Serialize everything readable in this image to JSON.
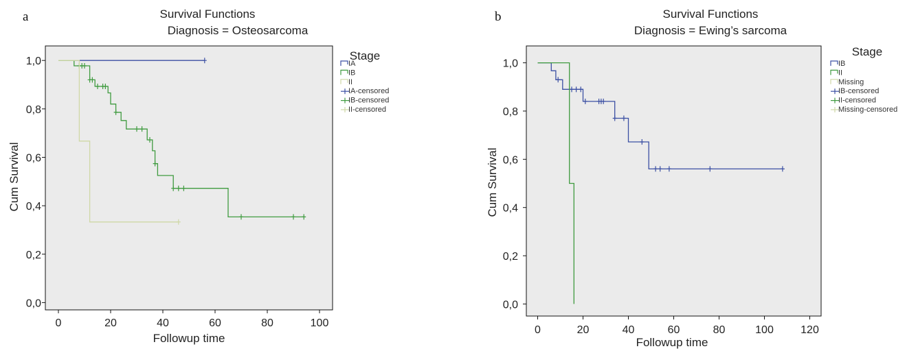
{
  "chart_data": [
    {
      "type": "line",
      "panel_label": "a",
      "title": "Survival Functions",
      "subtitle": "Diagnosis = Osteosarcoma",
      "xlabel": "Followup time",
      "ylabel": "Cum Survival",
      "xlim": [
        -5,
        105
      ],
      "ylim": [
        -0.03,
        1.06
      ],
      "xticks": [
        0,
        20,
        40,
        60,
        80,
        100
      ],
      "yticks": [
        "0,0",
        "0,2",
        "0,4",
        "0,6",
        "0,8",
        "1,0"
      ],
      "ytick_values": [
        0,
        0.2,
        0.4,
        0.6,
        0.8,
        1.0
      ],
      "grid": false,
      "legend_title": "Stage",
      "legend_position": "right",
      "legend": [
        "IA",
        "IB",
        "II",
        "IA-censored",
        "IB-censored",
        "II-censored"
      ],
      "colors": {
        "IA": "#3b4fa3",
        "IB": "#3f9b3f",
        "II": "#cfd8a6",
        "plot_bg": "#ebebeb"
      },
      "series": [
        {
          "name": "IA",
          "color": "#3b4fa3",
          "steps": [
            [
              0,
              1.0
            ],
            [
              56,
              1.0
            ]
          ],
          "censored": [
            [
              56,
              1.0
            ]
          ]
        },
        {
          "name": "IB",
          "color": "#3f9b3f",
          "steps": [
            [
              0,
              1.0
            ],
            [
              6,
              0.978
            ],
            [
              12,
              0.92
            ],
            [
              14,
              0.893
            ],
            [
              19,
              0.866
            ],
            [
              20,
              0.82
            ],
            [
              22,
              0.786
            ],
            [
              24,
              0.752
            ],
            [
              26,
              0.717
            ],
            [
              34,
              0.672
            ],
            [
              36,
              0.627
            ],
            [
              37,
              0.574
            ],
            [
              38,
              0.525
            ],
            [
              44,
              0.472
            ],
            [
              65,
              0.354
            ],
            [
              94,
              0.354
            ]
          ],
          "censored": [
            [
              8,
              0.978
            ],
            [
              9,
              0.978
            ],
            [
              10,
              0.978
            ],
            [
              12,
              0.92
            ],
            [
              13,
              0.92
            ],
            [
              15,
              0.893
            ],
            [
              17,
              0.893
            ],
            [
              18,
              0.893
            ],
            [
              22,
              0.786
            ],
            [
              30,
              0.717
            ],
            [
              32,
              0.717
            ],
            [
              35,
              0.672
            ],
            [
              37,
              0.574
            ],
            [
              44,
              0.472
            ],
            [
              46,
              0.472
            ],
            [
              48,
              0.472
            ],
            [
              70,
              0.354
            ],
            [
              90,
              0.354
            ],
            [
              94,
              0.354
            ]
          ]
        },
        {
          "name": "II",
          "color": "#cfd8a6",
          "steps": [
            [
              0,
              1.0
            ],
            [
              8,
              0.667
            ],
            [
              12,
              0.333
            ],
            [
              46,
              0.333
            ]
          ],
          "censored": [
            [
              46,
              0.333
            ]
          ]
        }
      ]
    },
    {
      "type": "line",
      "panel_label": "b",
      "title": "Survival Functions",
      "subtitle": "Diagnosis = Ewing’s sarcoma",
      "xlabel": "Followup time",
      "ylabel": "Cum Survival",
      "xlim": [
        -5,
        125
      ],
      "ylim": [
        -0.05,
        1.07
      ],
      "xticks": [
        0,
        20,
        40,
        60,
        80,
        100,
        120
      ],
      "yticks": [
        "0,0",
        "0,2",
        "0,4",
        "0,6",
        "0,8",
        "1,0"
      ],
      "ytick_values": [
        0,
        0.2,
        0.4,
        0.6,
        0.8,
        1.0
      ],
      "grid": false,
      "legend_title": "Stage",
      "legend_position": "right",
      "legend": [
        "IB",
        "II",
        "Missing",
        "IB-censored",
        "II-censored",
        "Missing-censored"
      ],
      "colors": {
        "IB": "#3b4fa3",
        "II": "#3f9b3f",
        "Missing": "#cfd8a6",
        "plot_bg": "#ebebeb"
      },
      "series": [
        {
          "name": "IB",
          "color": "#3b4fa3",
          "steps": [
            [
              0,
              1.0
            ],
            [
              6,
              0.967
            ],
            [
              8,
              0.93
            ],
            [
              11,
              0.89
            ],
            [
              20,
              0.84
            ],
            [
              34,
              0.77
            ],
            [
              40,
              0.672
            ],
            [
              49,
              0.56
            ],
            [
              108,
              0.56
            ]
          ],
          "censored": [
            [
              9,
              0.93
            ],
            [
              15,
              0.89
            ],
            [
              17,
              0.89
            ],
            [
              19,
              0.89
            ],
            [
              21,
              0.84
            ],
            [
              27,
              0.84
            ],
            [
              28,
              0.84
            ],
            [
              29,
              0.84
            ],
            [
              34,
              0.77
            ],
            [
              38,
              0.77
            ],
            [
              46,
              0.672
            ],
            [
              52,
              0.56
            ],
            [
              54,
              0.56
            ],
            [
              58,
              0.56
            ],
            [
              76,
              0.56
            ],
            [
              108,
              0.56
            ]
          ]
        },
        {
          "name": "II",
          "color": "#3f9b3f",
          "steps": [
            [
              0,
              1.0
            ],
            [
              14,
              1.0
            ],
            [
              14,
              0.5
            ],
            [
              16,
              0.5
            ],
            [
              16,
              0.0
            ]
          ],
          "censored": []
        }
      ]
    }
  ]
}
